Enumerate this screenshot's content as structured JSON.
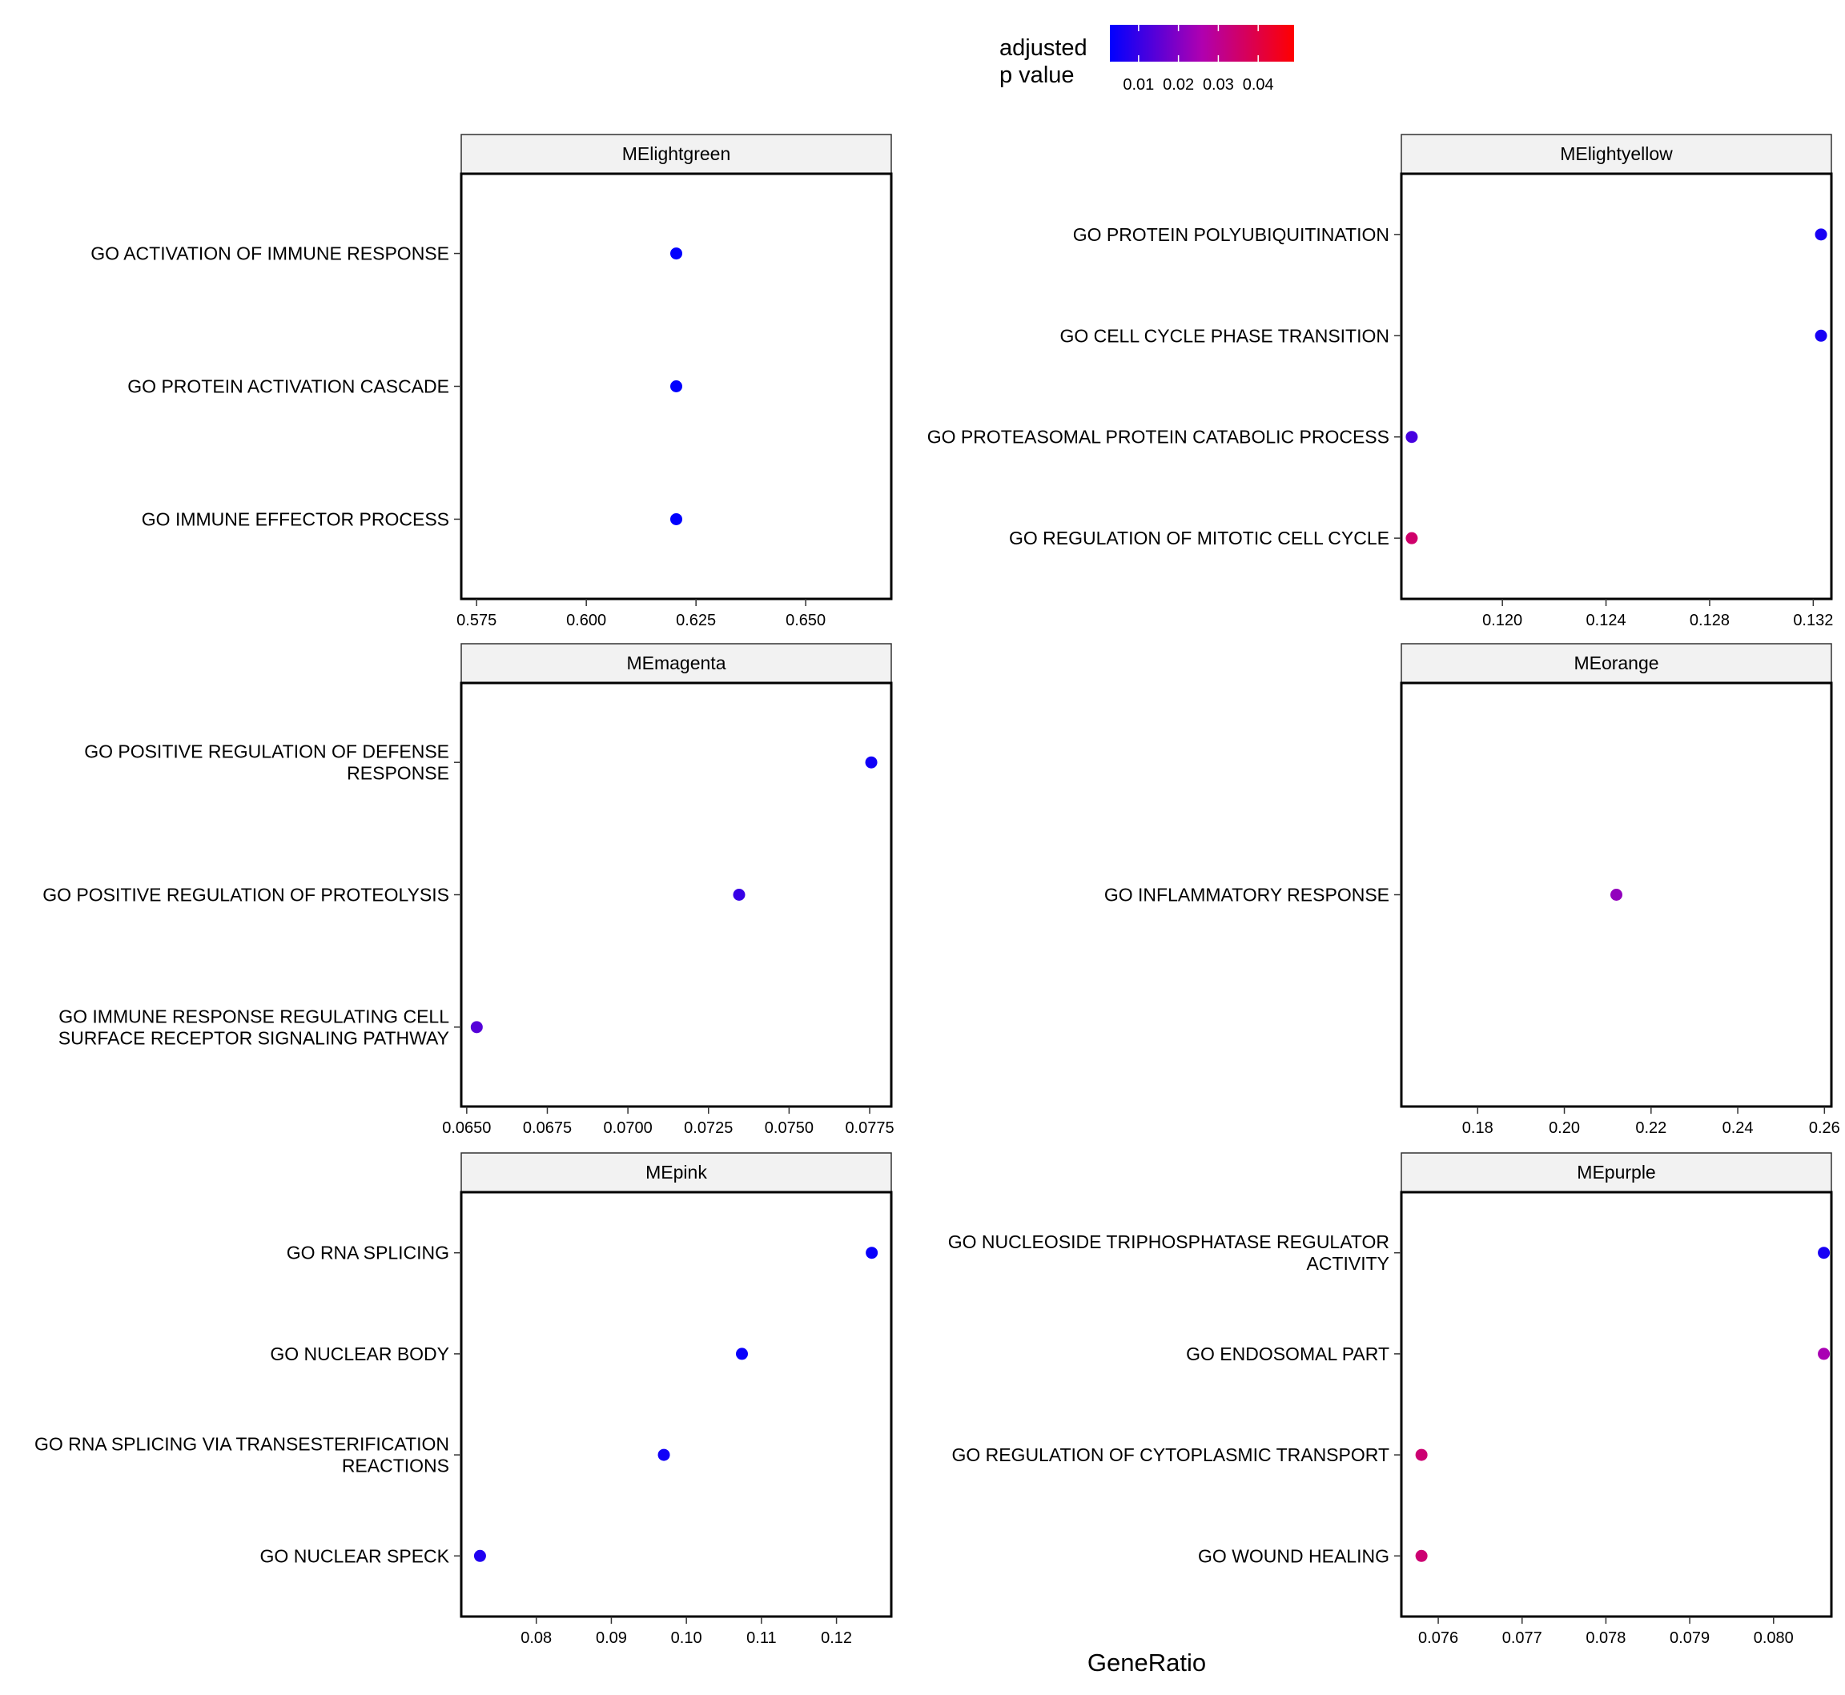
{
  "chart_data": {
    "type": "scatter",
    "x_axis_title": "GeneRatio",
    "legend": {
      "title_lines": [
        "adjusted",
        "p value"
      ],
      "placement": "top",
      "color_low": "#0000ff",
      "color_high": "#ff0000",
      "range": [
        0.0028,
        0.049
      ],
      "ticks": [
        0.01,
        0.02,
        0.03,
        0.04
      ],
      "tick_labels": [
        "0.01",
        "0.02",
        "0.03",
        "0.04"
      ]
    },
    "panels": [
      {
        "title": "MElightgreen",
        "x_ticks": [
          0.575,
          0.6,
          0.625,
          0.65
        ],
        "x_tick_labels": [
          "0.575",
          "0.600",
          "0.625",
          "0.650"
        ],
        "xlim": [
          0.5715,
          0.6695
        ],
        "terms": [
          {
            "lines": [
              "GO ACTIVATION OF IMMUNE RESPONSE"
            ],
            "x": 0.6205,
            "p": 0.003
          },
          {
            "lines": [
              "GO PROTEIN ACTIVATION CASCADE"
            ],
            "x": 0.6205,
            "p": 0.003
          },
          {
            "lines": [
              "GO IMMUNE EFFECTOR PROCESS"
            ],
            "x": 0.6205,
            "p": 0.003
          }
        ]
      },
      {
        "title": "MElightyellow",
        "x_ticks": [
          0.12,
          0.124,
          0.128,
          0.132
        ],
        "x_tick_labels": [
          "0.120",
          "0.124",
          "0.128",
          "0.132"
        ],
        "xlim": [
          0.1161,
          0.1327
        ],
        "terms": [
          {
            "lines": [
              "GO PROTEIN POLYUBIQUITINATION"
            ],
            "x": 0.1323,
            "p": 0.006
          },
          {
            "lines": [
              "GO CELL CYCLE PHASE TRANSITION"
            ],
            "x": 0.1323,
            "p": 0.006
          },
          {
            "lines": [
              "GO PROTEASOMAL PROTEIN CATABOLIC PROCESS"
            ],
            "x": 0.1165,
            "p": 0.012
          },
          {
            "lines": [
              "GO REGULATION OF MITOTIC CELL CYCLE"
            ],
            "x": 0.1165,
            "p": 0.035
          }
        ]
      },
      {
        "title": "MEmagenta",
        "x_ticks": [
          0.065,
          0.0675,
          0.07,
          0.0725,
          0.075,
          0.0775
        ],
        "x_tick_labels": [
          "0.0650",
          "0.0675",
          "0.0700",
          "0.0725",
          "0.0750",
          "0.0775"
        ],
        "xlim": [
          0.06483,
          0.07817
        ],
        "terms": [
          {
            "lines": [
              "GO POSITIVE REGULATION OF DEFENSE",
              "RESPONSE"
            ],
            "x": 0.07755,
            "p": 0.005
          },
          {
            "lines": [
              "GO POSITIVE REGULATION OF PROTEOLYSIS"
            ],
            "x": 0.07345,
            "p": 0.01
          },
          {
            "lines": [
              "GO IMMUNE RESPONSE REGULATING CELL",
              "SURFACE RECEPTOR SIGNALING PATHWAY"
            ],
            "x": 0.06531,
            "p": 0.014
          }
        ]
      },
      {
        "title": "MEorange",
        "x_ticks": [
          0.18,
          0.2,
          0.22,
          0.24,
          0.26
        ],
        "x_tick_labels": [
          "0.18",
          "0.20",
          "0.22",
          "0.24",
          "0.26"
        ],
        "xlim": [
          0.1624,
          0.2616
        ],
        "terms": [
          {
            "lines": [
              "GO INFLAMMATORY RESPONSE"
            ],
            "x": 0.212,
            "p": 0.022
          }
        ]
      },
      {
        "title": "MEpink",
        "x_ticks": [
          0.08,
          0.09,
          0.1,
          0.11,
          0.12
        ],
        "x_tick_labels": [
          "0.08",
          "0.09",
          "0.10",
          "0.11",
          "0.12"
        ],
        "xlim": [
          0.07,
          0.1273
        ],
        "terms": [
          {
            "lines": [
              "GO RNA SPLICING"
            ],
            "x": 0.1247,
            "p": 0.004
          },
          {
            "lines": [
              "GO NUCLEAR BODY"
            ],
            "x": 0.1074,
            "p": 0.004
          },
          {
            "lines": [
              "GO RNA SPLICING VIA TRANSESTERIFICATION",
              "REACTIONS"
            ],
            "x": 0.097,
            "p": 0.005
          },
          {
            "lines": [
              "GO NUCLEAR SPECK"
            ],
            "x": 0.0725,
            "p": 0.007
          }
        ]
      },
      {
        "title": "MEpurple",
        "x_ticks": [
          0.076,
          0.077,
          0.078,
          0.079,
          0.08
        ],
        "x_tick_labels": [
          "0.076",
          "0.077",
          "0.078",
          "0.079",
          "0.080"
        ],
        "xlim": [
          0.07556,
          0.08069
        ],
        "terms": [
          {
            "lines": [
              "GO NUCLEOSIDE TRIPHOSPHATASE REGULATOR",
              "ACTIVITY"
            ],
            "x": 0.0806,
            "p": 0.006
          },
          {
            "lines": [
              "GO ENDOSOMAL PART"
            ],
            "x": 0.0806,
            "p": 0.025
          },
          {
            "lines": [
              "GO REGULATION OF CYTOPLASMIC TRANSPORT"
            ],
            "x": 0.0758,
            "p": 0.034
          },
          {
            "lines": [
              "GO WOUND HEALING"
            ],
            "x": 0.0758,
            "p": 0.034
          }
        ]
      }
    ]
  }
}
